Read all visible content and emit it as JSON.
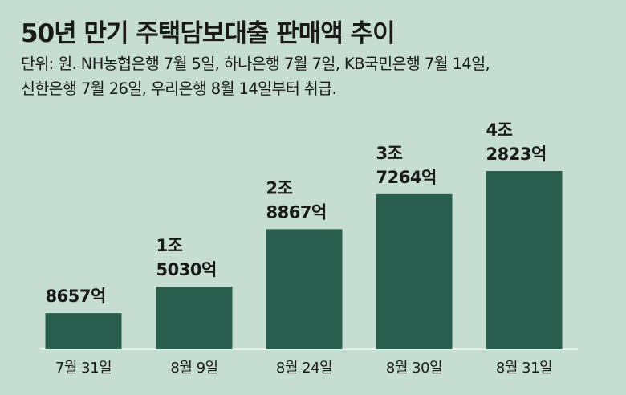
{
  "title": "50년 만기 주택담보대출 판매액 추이",
  "subtitle_lines": [
    "단위: 원. NH농협은행 7월 5일, 하나은행 7월 7일, KB국민은행 7월 14일,",
    "신한은행 7월 26일, 우리은행 8월 14일부터 취급."
  ],
  "chart_data": {
    "type": "bar",
    "title": "50년 만기 주택담보대출 판매액 추이",
    "categories": [
      "7월 31일",
      "8월 9일",
      "8월 24일",
      "8월 30일",
      "8월 31일"
    ],
    "values": [
      865700000000,
      1503000000000,
      2886700000000,
      3726400000000,
      4282300000000
    ],
    "data_labels": [
      [
        "8657억"
      ],
      [
        "1조",
        "5030억"
      ],
      [
        "2조",
        "8867억"
      ],
      [
        "3조",
        "7264억"
      ],
      [
        "4조",
        "2823억"
      ]
    ],
    "xlabel": "",
    "ylabel": "",
    "unit": "원",
    "colors": {
      "bar": "#2a5e4f",
      "background": "#c6ddd2"
    }
  }
}
